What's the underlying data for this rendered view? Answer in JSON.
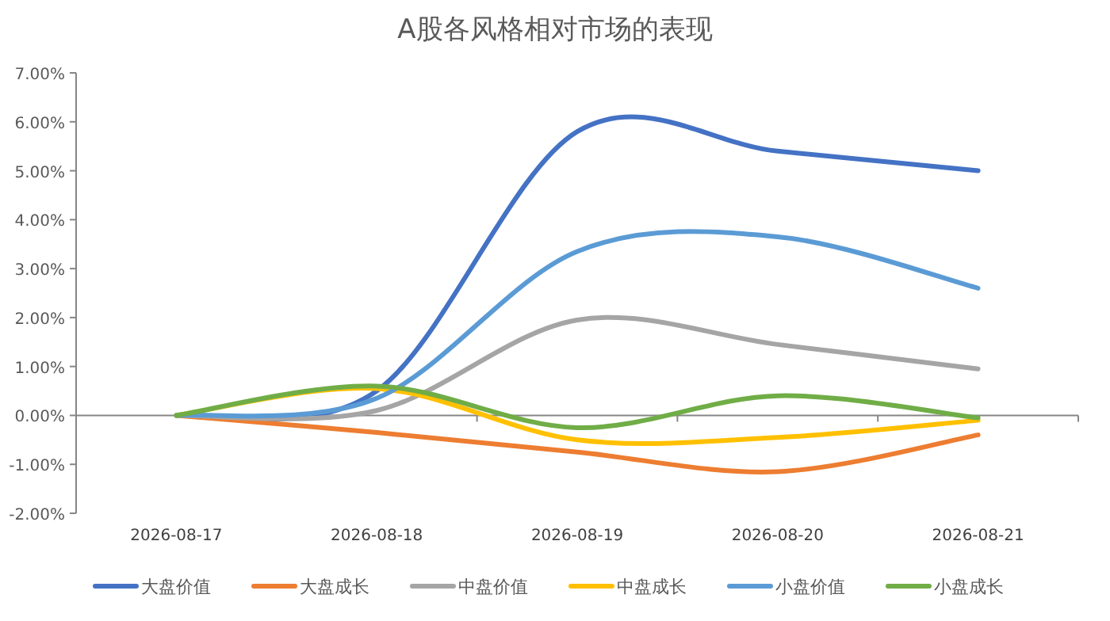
{
  "chart_data": {
    "type": "line",
    "title": "A股各风格相对市场的表现",
    "categories": [
      "2026-08-17",
      "2026-08-18",
      "2026-08-19",
      "2026-08-20",
      "2026-08-21"
    ],
    "series": [
      {
        "name": "大盘价值",
        "color": "#4472c4",
        "values": [
          0,
          0.5,
          5.8,
          5.4,
          5.0
        ]
      },
      {
        "name": "大盘成长",
        "color": "#ed7d31",
        "values": [
          0,
          -0.35,
          -0.75,
          -1.15,
          -0.4
        ]
      },
      {
        "name": "中盘价值",
        "color": "#a5a5a5",
        "values": [
          0,
          0.1,
          1.95,
          1.45,
          0.95
        ]
      },
      {
        "name": "中盘成长",
        "color": "#ffc000",
        "values": [
          0,
          0.55,
          -0.5,
          -0.45,
          -0.1
        ]
      },
      {
        "name": "小盘价值",
        "color": "#5b9bd5",
        "values": [
          0,
          0.35,
          3.35,
          3.65,
          2.6
        ]
      },
      {
        "name": "小盘成长",
        "color": "#70ad47",
        "values": [
          0,
          0.6,
          -0.25,
          0.4,
          -0.05
        ]
      }
    ],
    "ylim": [
      -2,
      7
    ],
    "yticks": [
      {
        "value": -2,
        "label": "-2.00%"
      },
      {
        "value": -1,
        "label": "-1.00%"
      },
      {
        "value": 0,
        "label": "0.00%"
      },
      {
        "value": 1,
        "label": "1.00%"
      },
      {
        "value": 2,
        "label": "2.00%"
      },
      {
        "value": 3,
        "label": "3.00%"
      },
      {
        "value": 4,
        "label": "4.00%"
      },
      {
        "value": 5,
        "label": "5.00%"
      },
      {
        "value": 6,
        "label": "6.00%"
      },
      {
        "value": 7,
        "label": "7.00%"
      }
    ],
    "legend": "bottom",
    "marker": "none",
    "line_style": "solid"
  }
}
